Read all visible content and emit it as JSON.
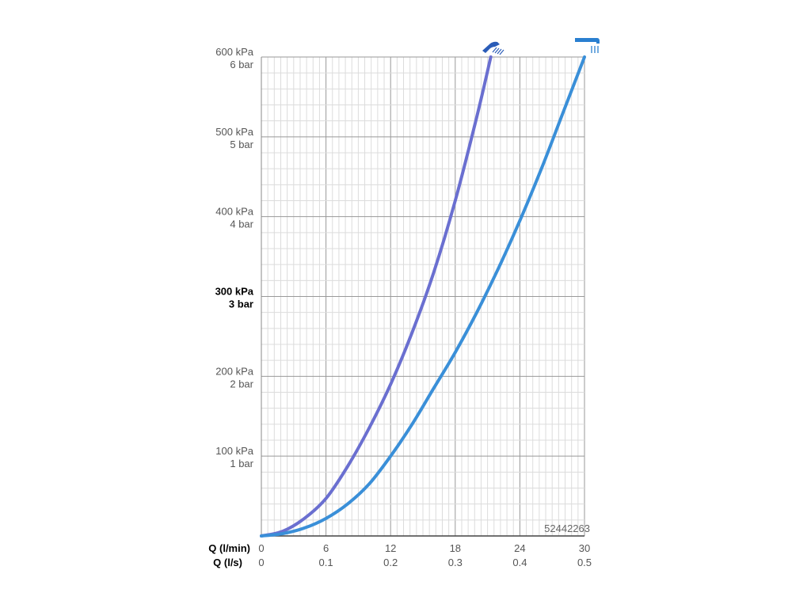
{
  "chart_data": {
    "type": "line",
    "x_unit_label": "Q (l/min)",
    "x2_unit_label": "Q (l/s)",
    "x_ticks": [
      "0",
      "6",
      "12",
      "18",
      "24",
      "30"
    ],
    "x2_ticks": [
      "0",
      "0.1",
      "0.2",
      "0.3",
      "0.4",
      "0.5"
    ],
    "xlim": [
      0,
      30
    ],
    "ylim": [
      0,
      600
    ],
    "y_ticks": [
      {
        "value": 100,
        "kpa": "100 kPa",
        "bar": "1 bar",
        "bold": false
      },
      {
        "value": 200,
        "kpa": "200 kPa",
        "bar": "2 bar",
        "bold": false
      },
      {
        "value": 300,
        "kpa": "300 kPa",
        "bar": "3 bar",
        "bold": true
      },
      {
        "value": 400,
        "kpa": "400 kPa",
        "bar": "4 bar",
        "bold": false
      },
      {
        "value": 500,
        "kpa": "500 kPa",
        "bar": "5 bar",
        "bold": false
      },
      {
        "value": 600,
        "kpa": "600 kPa",
        "bar": "6 bar",
        "bold": false
      }
    ],
    "grid": true,
    "code_label": "52442263",
    "series": [
      {
        "icon": "angled-hand-shower-icon",
        "color": "#6a6fd0",
        "x": [
          0,
          2,
          4,
          6,
          8,
          10,
          12,
          14,
          16,
          18,
          20,
          21.3
        ],
        "y": [
          0,
          6,
          22,
          47,
          87,
          135,
          190,
          255,
          330,
          420,
          525,
          600
        ]
      },
      {
        "icon": "straight-spout-icon",
        "color": "#3a8fd8",
        "x": [
          0,
          2,
          4,
          6,
          8,
          10,
          12,
          14,
          16,
          18,
          20,
          22,
          24,
          26,
          28,
          30
        ],
        "y": [
          0,
          3,
          10,
          22,
          40,
          65,
          100,
          140,
          185,
          230,
          280,
          335,
          395,
          460,
          530,
          600
        ]
      }
    ]
  }
}
